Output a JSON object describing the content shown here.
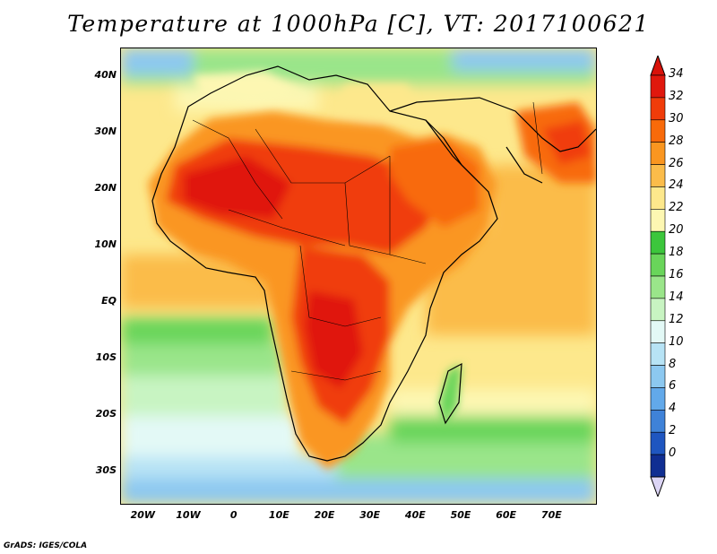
{
  "title": "Temperature at 1000hPa [C], VT: 2017100621",
  "credit": "GrADS: IGES/COLA",
  "map": {
    "variable": "temperature",
    "level": "1000hPa",
    "units": "C",
    "lon_range": [
      -25,
      80
    ],
    "lat_range": [
      -36,
      45
    ],
    "lat_ticks": [
      {
        "lat": 40,
        "label": "40N"
      },
      {
        "lat": 30,
        "label": "30N"
      },
      {
        "lat": 20,
        "label": "20N"
      },
      {
        "lat": 10,
        "label": "10N"
      },
      {
        "lat": 0,
        "label": "EQ"
      },
      {
        "lat": -10,
        "label": "10S"
      },
      {
        "lat": -20,
        "label": "20S"
      },
      {
        "lat": -30,
        "label": "30S"
      }
    ],
    "lon_ticks": [
      {
        "lon": -20,
        "label": "20W"
      },
      {
        "lon": -10,
        "label": "10W"
      },
      {
        "lon": 0,
        "label": "0"
      },
      {
        "lon": 10,
        "label": "10E"
      },
      {
        "lon": 20,
        "label": "20E"
      },
      {
        "lon": 30,
        "label": "30E"
      },
      {
        "lon": 40,
        "label": "40E"
      },
      {
        "lon": 50,
        "label": "50E"
      },
      {
        "lon": 60,
        "label": "60E"
      },
      {
        "lon": 70,
        "label": "70E"
      }
    ]
  },
  "colorbar": {
    "labels": [
      "34",
      "32",
      "30",
      "28",
      "26",
      "24",
      "22",
      "20",
      "18",
      "16",
      "14",
      "12",
      "10",
      "8",
      "6",
      "4",
      "2",
      "0"
    ],
    "colors": [
      "#e0180d",
      "#f03c0a",
      "#f86a0a",
      "#fa9620",
      "#fbbc4a",
      "#fde88c",
      "#fdf7b2",
      "#3cc63c",
      "#69d55a",
      "#9ae58a",
      "#c8f4c2",
      "#e3f9f6",
      "#b7e3f5",
      "#8cc8f0",
      "#62a9ea",
      "#3f82d8",
      "#1f56c0",
      "#102e92",
      "#0c1670"
    ],
    "top_arrow_color": "#d8120a",
    "bottom_arrow_color": "#dcd5f5"
  }
}
